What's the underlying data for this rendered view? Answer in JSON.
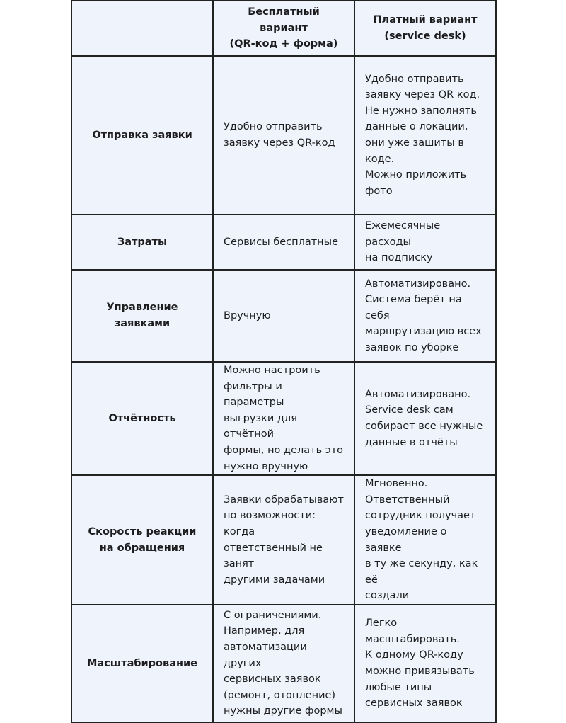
{
  "table": {
    "header": [
      [
        "Бесплатный вариант",
        "(QR-код + форма)"
      ],
      [
        "Платный вариант",
        "(service desk)"
      ]
    ],
    "rows": [
      {
        "label": [
          "Отправка заявки"
        ],
        "free": [
          "Удобно отправить",
          "заявку через QR-код"
        ],
        "paid": [
          "Удобно отправить",
          "заявку через QR код.",
          "Не нужно заполнять",
          "данные о локации,",
          "они уже зашиты в",
          "коде.",
          "Можно приложить",
          "фото"
        ]
      },
      {
        "label": [
          "Затраты"
        ],
        "free": [
          "Сервисы бесплатные"
        ],
        "paid": [
          "Ежемесячные расходы",
          "на подписку"
        ]
      },
      {
        "label": [
          "Управление заявками"
        ],
        "free": [
          "Вручную"
        ],
        "paid": [
          "Автоматизировано.",
          "Система берёт на себя",
          "маршрутизацию всех",
          "заявок по уборке"
        ]
      },
      {
        "label": [
          "Отчётность"
        ],
        "free": [
          "Можно настроить",
          "фильтры и параметры",
          "выгрузки для отчётной",
          "формы, но делать это",
          "нужно вручную"
        ],
        "paid": [
          "Автоматизировано.",
          "Service desk сам",
          "собирает все нужные",
          "данные в отчёты"
        ]
      },
      {
        "label": [
          "Скорость реакции",
          "на обращения"
        ],
        "free": [
          "Заявки обрабатывают",
          "по возможности: когда",
          "ответственный не занят",
          "другими задачами"
        ],
        "paid": [
          "Мгновенно.",
          "Ответственный",
          "сотрудник получает",
          "уведомление о заявке",
          "в ту же секунду, как её",
          "создали"
        ]
      },
      {
        "label": [
          "Масштабирование"
        ],
        "free": [
          "С ограничениями.",
          "Например, для",
          "автоматизации других",
          "сервисных заявок",
          "(ремонт, отопление)",
          "нужны другие формы"
        ],
        "paid": [
          "Легко",
          "масштабировать.",
          "К одному QR-коду",
          "можно привязывать",
          "любые типы",
          "сервисных заявок"
        ]
      }
    ]
  }
}
